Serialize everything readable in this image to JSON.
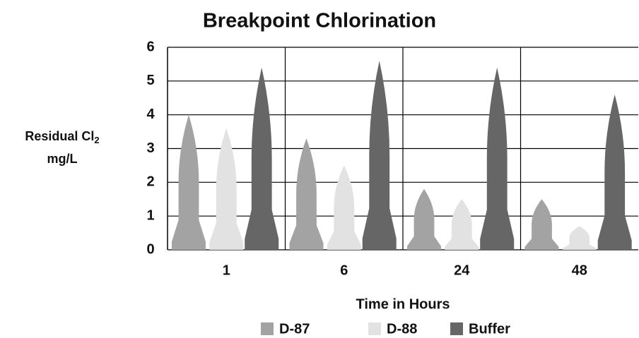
{
  "chart_data": {
    "type": "bar",
    "title": "Breakpoint Chlorination",
    "y_label": {
      "text": "Residual Cl",
      "subscript": "2",
      "line2": "mg/L"
    },
    "x_label": "Time in Hours",
    "categories": [
      "1",
      "6",
      "24",
      "48"
    ],
    "series": [
      {
        "name": "D-87",
        "color": "#a3a3a3",
        "values": [
          4.0,
          3.3,
          1.8,
          1.5
        ]
      },
      {
        "name": "D-88",
        "color": "#e2e2e2",
        "values": [
          3.6,
          2.5,
          1.5,
          0.7
        ]
      },
      {
        "name": "Buffer",
        "color": "#666666",
        "values": [
          5.4,
          5.6,
          5.4,
          4.6
        ]
      }
    ],
    "ylim": [
      0,
      6
    ],
    "yticks": [
      0,
      1,
      2,
      3,
      4,
      5,
      6
    ],
    "grid": true
  }
}
